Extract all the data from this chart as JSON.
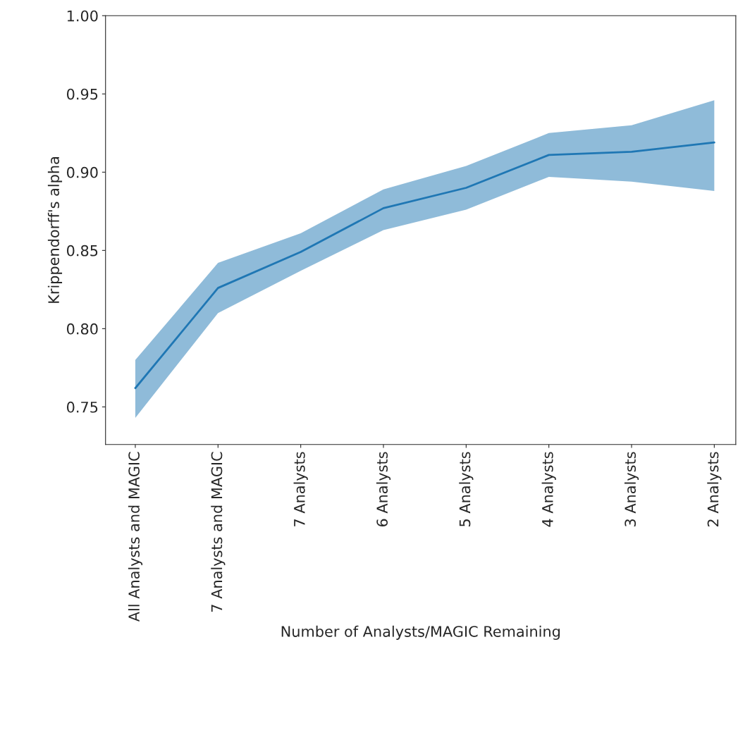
{
  "chart_data": {
    "type": "line",
    "xlabel": "Number of Analysts/MAGIC Remaining",
    "ylabel": "Krippendorff's alpha",
    "categories": [
      "All Analysts and MAGIC",
      "7 Analysts and MAGIC",
      "7 Analysts",
      "6 Analysts",
      "5 Analysts",
      "4 Analysts",
      "3 Analysts",
      "2 Analysts"
    ],
    "series": [
      {
        "color": "#1f77b4",
        "values": [
          0.762,
          0.826,
          0.849,
          0.877,
          0.89,
          0.911,
          0.913,
          0.919
        ],
        "lower": [
          0.743,
          0.81,
          0.837,
          0.863,
          0.876,
          0.897,
          0.894,
          0.888
        ],
        "upper": [
          0.78,
          0.842,
          0.861,
          0.889,
          0.904,
          0.925,
          0.93,
          0.946
        ]
      }
    ],
    "ylim": [
      0.726,
      1.0
    ],
    "yticks": [
      {
        "value": 0.75,
        "label": "0.75"
      },
      {
        "value": 0.8,
        "label": "0.80"
      },
      {
        "value": 0.85,
        "label": "0.85"
      },
      {
        "value": 0.9,
        "label": "0.90"
      },
      {
        "value": 0.95,
        "label": "0.95"
      },
      {
        "value": 1.0,
        "label": "1.00"
      }
    ],
    "grid": false,
    "legend": false
  }
}
